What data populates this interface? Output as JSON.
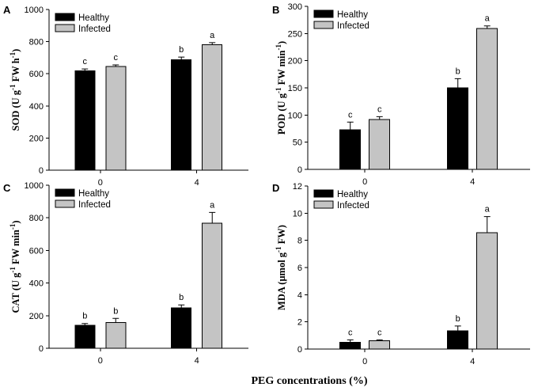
{
  "x_axis_title": "PEG concentrations (%)",
  "series_colors": {
    "Healthy": "#000000",
    "Infected": "#c4c4c4"
  },
  "chart_data": [
    {
      "panel": "A",
      "type": "bar",
      "ylabel_parts": [
        [
          "SOD (U g"
        ],
        [
          "-1",
          "sup"
        ],
        [
          " FW h"
        ],
        [
          "-1",
          "sup"
        ],
        [
          ")"
        ]
      ],
      "categories": [
        "0",
        "4"
      ],
      "ylim": [
        0,
        1000
      ],
      "yticks": [
        0,
        200,
        400,
        600,
        800,
        1000
      ],
      "legend": [
        "Healthy",
        "Infected"
      ],
      "series": [
        {
          "name": "Healthy",
          "values": [
            618,
            686
          ],
          "errors": [
            12,
            18
          ],
          "letters": [
            "c",
            "b"
          ]
        },
        {
          "name": "Infected",
          "values": [
            645,
            782
          ],
          "errors": [
            10,
            12
          ],
          "letters": [
            "c",
            "a"
          ]
        }
      ]
    },
    {
      "panel": "B",
      "type": "bar",
      "ylabel_parts": [
        [
          "POD (U g"
        ],
        [
          "-1",
          "sup"
        ],
        [
          " FW min"
        ],
        [
          "-1",
          "sup"
        ],
        [
          ")"
        ]
      ],
      "categories": [
        "0",
        "4"
      ],
      "ylim": [
        0,
        300
      ],
      "yticks": [
        0,
        50,
        100,
        150,
        200,
        250,
        300
      ],
      "legend": [
        "Healthy",
        "Infected"
      ],
      "series": [
        {
          "name": "Healthy",
          "values": [
            73,
            150
          ],
          "errors": [
            14,
            17
          ],
          "letters": [
            "c",
            "b"
          ]
        },
        {
          "name": "Infected",
          "values": [
            92,
            259
          ],
          "errors": [
            5,
            5
          ],
          "letters": [
            "c",
            "a"
          ]
        }
      ]
    },
    {
      "panel": "C",
      "type": "bar",
      "ylabel_parts": [
        [
          "CAT (U g"
        ],
        [
          "-1",
          "sup"
        ],
        [
          " FW min"
        ],
        [
          "-1",
          "sup"
        ],
        [
          ")"
        ]
      ],
      "categories": [
        "0",
        "4"
      ],
      "ylim": [
        0,
        1000
      ],
      "yticks": [
        0,
        200,
        400,
        600,
        800,
        1000
      ],
      "legend": [
        "Healthy",
        "Infected"
      ],
      "series": [
        {
          "name": "Healthy",
          "values": [
            140,
            248
          ],
          "errors": [
            12,
            18
          ],
          "letters": [
            "b",
            "b"
          ]
        },
        {
          "name": "Infected",
          "values": [
            158,
            768
          ],
          "errors": [
            25,
            65
          ],
          "letters": [
            "b",
            "a"
          ]
        }
      ]
    },
    {
      "panel": "D",
      "type": "bar",
      "ylabel_parts": [
        [
          "MDA (μmol g"
        ],
        [
          "-1",
          "sup"
        ],
        [
          " FW)"
        ]
      ],
      "categories": [
        "0",
        "4"
      ],
      "ylim": [
        0,
        12
      ],
      "yticks": [
        0,
        2,
        4,
        6,
        8,
        10,
        12
      ],
      "legend": [
        "Healthy",
        "Infected"
      ],
      "series": [
        {
          "name": "Healthy",
          "values": [
            0.5,
            1.35
          ],
          "errors": [
            0.18,
            0.35
          ],
          "letters": [
            "c",
            "b"
          ]
        },
        {
          "name": "Infected",
          "values": [
            0.6,
            8.55
          ],
          "errors": [
            0.08,
            1.2
          ],
          "letters": [
            "c",
            "a"
          ]
        }
      ]
    }
  ]
}
